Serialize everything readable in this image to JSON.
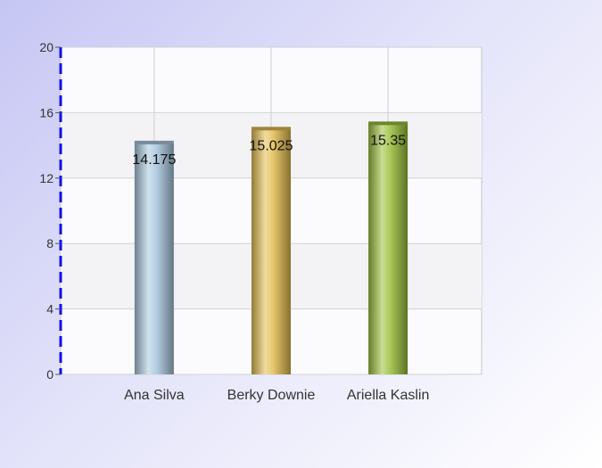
{
  "chart_data": {
    "type": "bar",
    "title": "",
    "xlabel": "",
    "ylabel": "",
    "categories": [
      "Ana Silva",
      "Berky Downie",
      "Ariella Kaslin"
    ],
    "values": [
      14.175,
      15.025,
      15.35
    ],
    "value_labels": [
      "14.175",
      "15.025",
      "15.35"
    ],
    "ylim": [
      0,
      20
    ],
    "yticks": [
      0,
      4,
      8,
      12,
      16,
      20
    ],
    "ytick_labels": [
      "0",
      "4",
      "8",
      "12",
      "16",
      "20"
    ],
    "grid": true,
    "legend": "none",
    "bar_colors": [
      "#a9c7de",
      "#e3bd52",
      "#9cbf3c"
    ],
    "axis_color": "#1010e6"
  }
}
